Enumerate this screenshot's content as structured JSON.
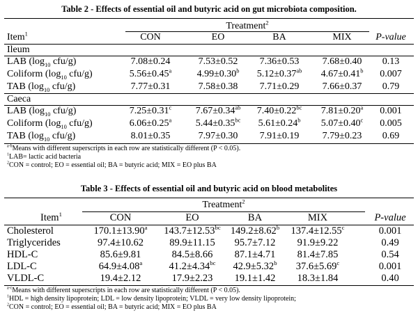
{
  "table2": {
    "caption": "Table 2 - Effects of essential oil and butyric acid on gut microbiota composition.",
    "treatment_label": "Treatment",
    "treatment_sup": "2",
    "item_label": "Item",
    "item_sup": "1",
    "columns": [
      "CON",
      "EO",
      "BA",
      "MIX"
    ],
    "pvalue_label": "P-value",
    "sections": [
      {
        "name": "Ileum",
        "rows": [
          {
            "pre": "LAB (log",
            "sub": "10",
            "post": " cfu/g)",
            "vals": [
              [
                "7.08±0.24",
                ""
              ],
              [
                "7.53±0.52",
                ""
              ],
              [
                "7.36±0.53",
                ""
              ],
              [
                "7.68±0.40",
                ""
              ]
            ],
            "p": "0.13"
          },
          {
            "pre": "Coliform (log",
            "sub": "10",
            "post": " cfu/g)",
            "vals": [
              [
                "5.56±0.45",
                "a"
              ],
              [
                "4.99±0.30",
                "b"
              ],
              [
                "5.12±0.37",
                "ab"
              ],
              [
                "4.67±0.41",
                "b"
              ]
            ],
            "p": "0.007"
          },
          {
            "pre": "TAB (log",
            "sub": "10",
            "post": " cfu/g)",
            "vals": [
              [
                "7.77±0.31",
                ""
              ],
              [
                "7.58±0.38",
                ""
              ],
              [
                "7.71±0.29",
                ""
              ],
              [
                "7.66±0.37",
                ""
              ]
            ],
            "p": "0.79"
          }
        ]
      },
      {
        "name": "Caeca",
        "rows": [
          {
            "pre": "LAB (log",
            "sub": "10",
            "post": " cfu/g)",
            "vals": [
              [
                "7.25±0.31",
                "c"
              ],
              [
                "7.67±0.34",
                "ab"
              ],
              [
                "7.40±0.22",
                "bc"
              ],
              [
                "7.81±0.20",
                "a"
              ]
            ],
            "p": "0.001"
          },
          {
            "pre": "Coliform (log",
            "sub": "10",
            "post": " cfu/g)",
            "vals": [
              [
                "6.06±0.25",
                "a"
              ],
              [
                "5.44±0.35",
                "bc"
              ],
              [
                "5.61±0.24",
                "b"
              ],
              [
                "5.07±0.40",
                "c"
              ]
            ],
            "p": "0.005"
          },
          {
            "pre": "TAB (log",
            "sub": "10",
            "post": " cfu/g)",
            "vals": [
              [
                "8.01±0.35",
                ""
              ],
              [
                "7.97±0.30",
                ""
              ],
              [
                "7.91±0.19",
                ""
              ],
              [
                "7.79±0.23",
                ""
              ]
            ],
            "p": "0.69"
          }
        ]
      }
    ],
    "footnotes": [
      {
        "sup": "a-b",
        "text": "Means with different superscripts in each row are statistically different (P < 0.05)."
      },
      {
        "sup": "1",
        "text": "LAB= lactic acid bacteria"
      },
      {
        "sup": "2",
        "text": "CON = control; EO = essential oil; BA = butyric acid; MIX = EO plus BA"
      }
    ]
  },
  "table3": {
    "caption": "Table 3 - Effects of essential oil and butyric acid on blood metabolites",
    "treatment_label": "Treatment",
    "treatment_sup": "2",
    "item_label": "Item",
    "item_sup": "1",
    "columns": [
      "CON",
      "EO",
      "BA",
      "MIX"
    ],
    "pvalue_label": "P-value",
    "rows": [
      {
        "item": "Cholesterol",
        "vals": [
          [
            "170.1±13.90",
            "a"
          ],
          [
            "143.7±12.53",
            "bc"
          ],
          [
            "149.2±8.62",
            "b"
          ],
          [
            "137.4±12.55",
            "c"
          ]
        ],
        "p": "0.001"
      },
      {
        "item": "Triglycerides",
        "vals": [
          [
            "97.4±10.62",
            ""
          ],
          [
            "89.9±11.15",
            ""
          ],
          [
            "95.7±7.12",
            ""
          ],
          [
            "91.9±9.22",
            ""
          ]
        ],
        "p": "0.49"
      },
      {
        "item": "HDL-C",
        "vals": [
          [
            "85.6±9.81",
            ""
          ],
          [
            "84.5±8.66",
            ""
          ],
          [
            "87.1±4.71",
            ""
          ],
          [
            "81.4±7.85",
            ""
          ]
        ],
        "p": "0.54"
      },
      {
        "item": "LDL-C",
        "vals": [
          [
            "64.9±4.08",
            "a"
          ],
          [
            "41.2±4.34",
            "bc"
          ],
          [
            "42.9±5.32",
            "b"
          ],
          [
            "37.6±5.69",
            "c"
          ]
        ],
        "p": "0.001"
      },
      {
        "item": "VLDL-C",
        "vals": [
          [
            "19.4±2.12",
            ""
          ],
          [
            "17.9±2.23",
            ""
          ],
          [
            "19.1±1.42",
            ""
          ],
          [
            "18.3±1.84",
            ""
          ]
        ],
        "p": "0.40"
      }
    ],
    "footnotes": [
      {
        "sup": "a-c",
        "text": "Means with different superscripts in each row are statistically different (P < 0.05)."
      },
      {
        "sup": "1",
        "text": "HDL = high density lipoprotein; LDL = low density lipoprotein; VLDL = very low density lipoprotein;"
      },
      {
        "sup": "2",
        "text": "CON = control; EO = essential oil; BA = butyric acid; MIX = EO plus BA"
      }
    ]
  }
}
